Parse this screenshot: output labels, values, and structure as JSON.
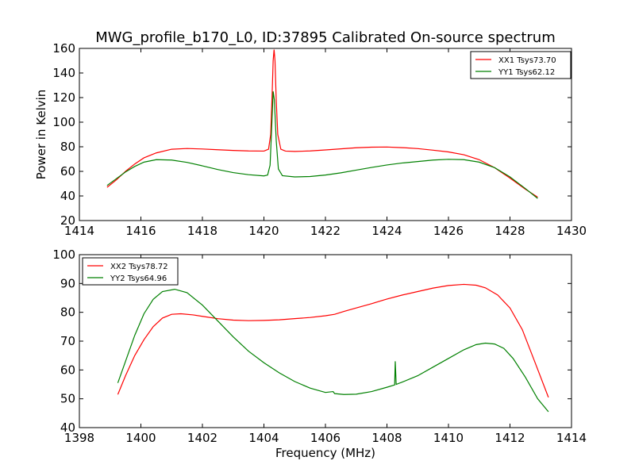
{
  "title": "MWG_profile_b170_L0, ID:37895 Calibrated On-source spectrum",
  "chart_data": [
    {
      "type": "line",
      "ylabel": "Power in Kelvin",
      "xlabel": "",
      "xlim": [
        1414,
        1430
      ],
      "ylim": [
        20,
        160
      ],
      "xticks": [
        1414,
        1416,
        1418,
        1420,
        1422,
        1424,
        1426,
        1428,
        1430
      ],
      "yticks": [
        20,
        40,
        60,
        80,
        100,
        120,
        140,
        160
      ],
      "legend_position": "top-right",
      "series": [
        {
          "name": "XX1 Tsys73.70",
          "color": "#ff0000",
          "points": [
            [
              1414.9,
              47
            ],
            [
              1415.2,
              53
            ],
            [
              1415.5,
              60
            ],
            [
              1415.8,
              66
            ],
            [
              1416.1,
              71
            ],
            [
              1416.5,
              75
            ],
            [
              1417,
              78
            ],
            [
              1417.5,
              78.6
            ],
            [
              1418,
              78.2
            ],
            [
              1418.5,
              77.6
            ],
            [
              1419,
              77
            ],
            [
              1419.5,
              76.6
            ],
            [
              1420,
              76.5
            ],
            [
              1420.15,
              78
            ],
            [
              1420.22,
              90
            ],
            [
              1420.27,
              125
            ],
            [
              1420.3,
              150
            ],
            [
              1420.33,
              159
            ],
            [
              1420.36,
              150
            ],
            [
              1420.4,
              118
            ],
            [
              1420.45,
              90
            ],
            [
              1420.55,
              78
            ],
            [
              1420.7,
              76.5
            ],
            [
              1421,
              76.2
            ],
            [
              1421.5,
              76.6
            ],
            [
              1422,
              77.4
            ],
            [
              1422.5,
              78.3
            ],
            [
              1423,
              79.2
            ],
            [
              1423.5,
              79.7
            ],
            [
              1424,
              79.8
            ],
            [
              1424.5,
              79.3
            ],
            [
              1425,
              78.5
            ],
            [
              1425.5,
              77.2
            ],
            [
              1426,
              75.8
            ],
            [
              1426.5,
              73.5
            ],
            [
              1427,
              69.5
            ],
            [
              1427.5,
              63
            ],
            [
              1428,
              54.5
            ],
            [
              1428.5,
              45.5
            ],
            [
              1428.9,
              39
            ]
          ]
        },
        {
          "name": "YY1 Tsys62.12",
          "color": "#008000",
          "points": [
            [
              1414.9,
              48.5
            ],
            [
              1415.2,
              54
            ],
            [
              1415.5,
              59.5
            ],
            [
              1415.8,
              64
            ],
            [
              1416.1,
              67.5
            ],
            [
              1416.5,
              69.5
            ],
            [
              1417,
              69.2
            ],
            [
              1417.5,
              67.3
            ],
            [
              1418,
              64.5
            ],
            [
              1418.5,
              61.5
            ],
            [
              1419,
              59
            ],
            [
              1419.5,
              57.3
            ],
            [
              1420,
              56.3
            ],
            [
              1420.12,
              57
            ],
            [
              1420.2,
              65
            ],
            [
              1420.26,
              100
            ],
            [
              1420.3,
              125
            ],
            [
              1420.34,
              118
            ],
            [
              1420.4,
              85
            ],
            [
              1420.47,
              62
            ],
            [
              1420.6,
              56.5
            ],
            [
              1421,
              55.5
            ],
            [
              1421.5,
              55.8
            ],
            [
              1422,
              57
            ],
            [
              1422.5,
              58.8
            ],
            [
              1423,
              61
            ],
            [
              1423.5,
              63.2
            ],
            [
              1424,
              65.2
            ],
            [
              1424.5,
              66.8
            ],
            [
              1425,
              68
            ],
            [
              1425.5,
              69.2
            ],
            [
              1426,
              69.8
            ],
            [
              1426.5,
              69.5
            ],
            [
              1427,
              67.5
            ],
            [
              1427.5,
              63
            ],
            [
              1428,
              55.5
            ],
            [
              1428.5,
              46
            ],
            [
              1428.9,
              38
            ]
          ]
        }
      ]
    },
    {
      "type": "line",
      "xlabel": "Frequency (MHz)",
      "ylabel": "",
      "xlim": [
        1398,
        1414
      ],
      "ylim": [
        40,
        100
      ],
      "xticks": [
        1398,
        1400,
        1402,
        1404,
        1406,
        1408,
        1410,
        1412,
        1414
      ],
      "yticks": [
        40,
        50,
        60,
        70,
        80,
        90,
        100
      ],
      "legend_position": "top-left",
      "series": [
        {
          "name": "XX2 Tsys78.72",
          "color": "#ff0000",
          "points": [
            [
              1399.25,
              51.5
            ],
            [
              1399.5,
              58
            ],
            [
              1399.8,
              65
            ],
            [
              1400.1,
              70.5
            ],
            [
              1400.4,
              75
            ],
            [
              1400.7,
              78
            ],
            [
              1401,
              79.3
            ],
            [
              1401.3,
              79.5
            ],
            [
              1401.7,
              79.1
            ],
            [
              1402,
              78.6
            ],
            [
              1402.5,
              77.8
            ],
            [
              1403,
              77.3
            ],
            [
              1403.5,
              77.1
            ],
            [
              1404,
              77.2
            ],
            [
              1404.5,
              77.4
            ],
            [
              1405,
              77.8
            ],
            [
              1405.5,
              78.2
            ],
            [
              1406,
              78.8
            ],
            [
              1406.3,
              79.3
            ],
            [
              1406.6,
              80.3
            ],
            [
              1407,
              81.5
            ],
            [
              1407.5,
              83
            ],
            [
              1408,
              84.6
            ],
            [
              1408.5,
              86
            ],
            [
              1409,
              87.2
            ],
            [
              1409.5,
              88.4
            ],
            [
              1410,
              89.3
            ],
            [
              1410.5,
              89.7
            ],
            [
              1410.9,
              89.4
            ],
            [
              1411.2,
              88.5
            ],
            [
              1411.6,
              86
            ],
            [
              1412,
              81.5
            ],
            [
              1412.4,
              74
            ],
            [
              1412.8,
              63
            ],
            [
              1413.25,
              50.5
            ]
          ]
        },
        {
          "name": "YY2 Tsys64.96",
          "color": "#008000",
          "points": [
            [
              1399.25,
              55.5
            ],
            [
              1399.5,
              63
            ],
            [
              1399.8,
              72
            ],
            [
              1400.1,
              79.5
            ],
            [
              1400.4,
              84.5
            ],
            [
              1400.7,
              87.2
            ],
            [
              1401.1,
              88
            ],
            [
              1401.5,
              86.8
            ],
            [
              1402,
              82.5
            ],
            [
              1402.5,
              77
            ],
            [
              1403,
              71.5
            ],
            [
              1403.5,
              66.5
            ],
            [
              1404,
              62.5
            ],
            [
              1404.5,
              59
            ],
            [
              1405,
              56
            ],
            [
              1405.5,
              53.7
            ],
            [
              1406,
              52.2
            ],
            [
              1406.25,
              52.5
            ],
            [
              1406.3,
              51.8
            ],
            [
              1406.6,
              51.5
            ],
            [
              1407,
              51.6
            ],
            [
              1407.5,
              52.5
            ],
            [
              1408,
              54
            ],
            [
              1408.25,
              54.8
            ],
            [
              1408.27,
              63
            ],
            [
              1408.3,
              55
            ],
            [
              1408.5,
              55.8
            ],
            [
              1409,
              58
            ],
            [
              1409.5,
              61
            ],
            [
              1410,
              64
            ],
            [
              1410.5,
              67
            ],
            [
              1410.9,
              68.8
            ],
            [
              1411.2,
              69.3
            ],
            [
              1411.5,
              69
            ],
            [
              1411.8,
              67.5
            ],
            [
              1412.1,
              64
            ],
            [
              1412.5,
              57.5
            ],
            [
              1412.9,
              50
            ],
            [
              1413.25,
              45.5
            ]
          ]
        }
      ]
    }
  ]
}
